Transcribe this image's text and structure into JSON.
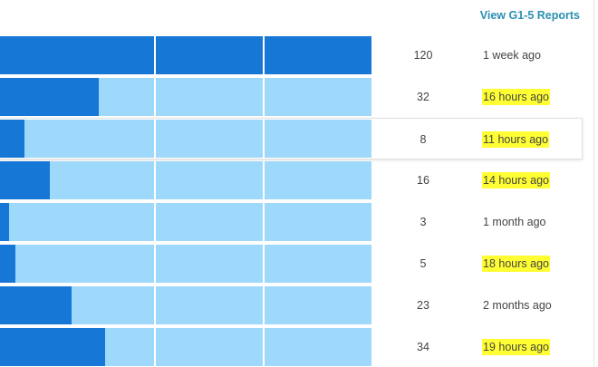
{
  "header": {
    "reports_link": "View G1-5 Reports"
  },
  "colors": {
    "bar_fill": "#1777d6",
    "bar_track": "#9ed9fb",
    "highlight": "#ffff33",
    "link": "#2b8fb3"
  },
  "rows": [
    {
      "count": "120",
      "time": "1 week ago",
      "fill_fraction": 1.0,
      "highlighted": false
    },
    {
      "count": "32",
      "time": "16 hours ago",
      "fill_fraction": 0.267,
      "highlighted": true
    },
    {
      "count": "8",
      "time": "11 hours ago",
      "fill_fraction": 0.067,
      "highlighted": true
    },
    {
      "count": "16",
      "time": "14 hours ago",
      "fill_fraction": 0.133,
      "highlighted": true
    },
    {
      "count": "3",
      "time": "1 month ago",
      "fill_fraction": 0.025,
      "highlighted": false
    },
    {
      "count": "5",
      "time": "18 hours ago",
      "fill_fraction": 0.042,
      "highlighted": true
    },
    {
      "count": "23",
      "time": "2 months ago",
      "fill_fraction": 0.192,
      "highlighted": false
    },
    {
      "count": "34",
      "time": "19 hours ago",
      "fill_fraction": 0.283,
      "highlighted": true
    }
  ]
}
